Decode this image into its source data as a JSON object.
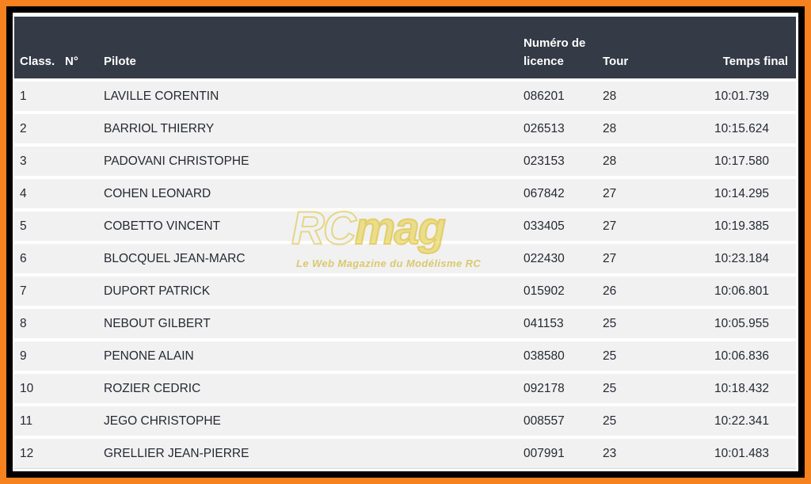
{
  "colors": {
    "frame_outer": "#f5821f",
    "frame_inner": "#000000",
    "header_bg": "#343a46",
    "header_text": "#ffffff",
    "row_bg": "#f1f1f2",
    "row_text": "#26292f",
    "watermark_gold": "#d8b61e"
  },
  "table": {
    "columns": [
      {
        "key": "class",
        "label": "Class."
      },
      {
        "key": "num",
        "label": "N°"
      },
      {
        "key": "pilote",
        "label": "Pilote"
      },
      {
        "key": "licence",
        "label": "Numéro de licence"
      },
      {
        "key": "tour",
        "label": "Tour"
      },
      {
        "key": "temps",
        "label": "Temps final"
      }
    ],
    "rows": [
      [
        "1",
        "",
        "LAVILLE CORENTIN",
        "086201",
        "28",
        "10:01.739"
      ],
      [
        "2",
        "",
        "BARRIOL THIERRY",
        "026513",
        "28",
        "10:15.624"
      ],
      [
        "3",
        "",
        "PADOVANI CHRISTOPHE",
        "023153",
        "28",
        "10:17.580"
      ],
      [
        "4",
        "",
        "COHEN LEONARD",
        "067842",
        "27",
        "10:14.295"
      ],
      [
        "5",
        "",
        "COBETTO VINCENT",
        "033405",
        "27",
        "10:19.385"
      ],
      [
        "6",
        "",
        "BLOCQUEL JEAN-MARC",
        "022430",
        "27",
        "10:23.184"
      ],
      [
        "7",
        "",
        "DUPORT PATRICK",
        "015902",
        "26",
        "10:06.801"
      ],
      [
        "8",
        "",
        "NEBOUT GILBERT",
        "041153",
        "25",
        "10:05.955"
      ],
      [
        "9",
        "",
        "PENONE ALAIN",
        "038580",
        "25",
        "10:06.836"
      ],
      [
        "10",
        "",
        "ROZIER CEDRIC",
        "092178",
        "25",
        "10:18.432"
      ],
      [
        "11",
        "",
        "JEGO CHRISTOPHE",
        "008557",
        "25",
        "10:22.341"
      ],
      [
        "12",
        "",
        "GRELLIER JEAN-PIERRE",
        "007991",
        "23",
        "10:01.483"
      ]
    ]
  },
  "watermark": {
    "brand_rc": "RC",
    "brand_mag": "mag",
    "tagline": "Le Web Magazine du Modélisme RC"
  }
}
